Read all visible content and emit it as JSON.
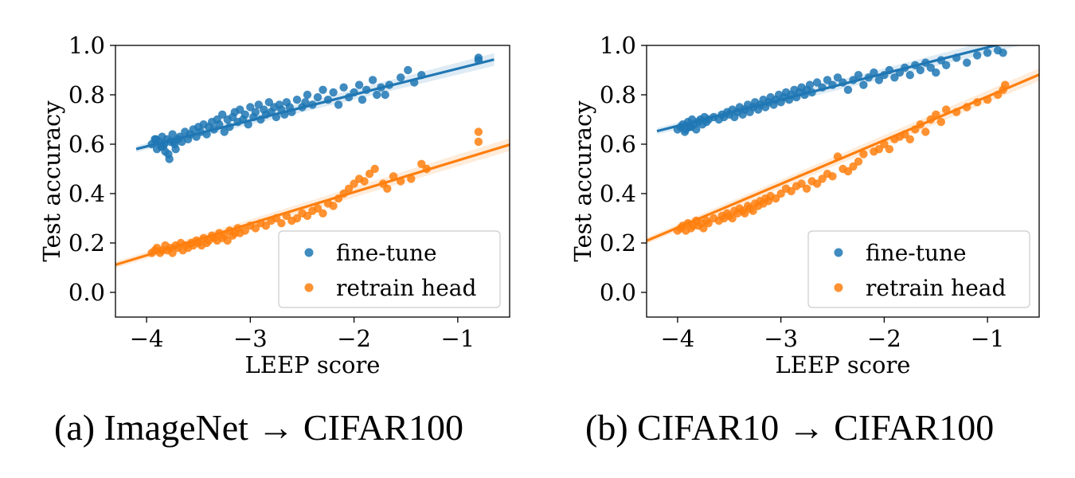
{
  "chart_data": [
    {
      "type": "scatter",
      "xlabel": "LEEP score",
      "ylabel": "Test accuracy",
      "xlim": [
        -4.3,
        -0.5
      ],
      "ylim": [
        -0.1,
        1.0
      ],
      "xticks": [
        -4,
        -3,
        -2,
        -1
      ],
      "xtick_labels": [
        "−4",
        "−3",
        "−2",
        "−1"
      ],
      "yticks": [
        0.0,
        0.2,
        0.4,
        0.6,
        0.8,
        1.0
      ],
      "ytick_labels": [
        "0.0",
        "0.2",
        "0.4",
        "0.6",
        "0.8",
        "1.0"
      ],
      "legend_position": "bottom-right",
      "grid": false,
      "caption": "(a) ImageNet → CIFAR100",
      "series": [
        {
          "name": "fine-tune",
          "color": "#1f77b4",
          "fit": {
            "slope": 0.105,
            "intercept": 1.011,
            "x_range": [
              -4.1,
              -0.65
            ]
          },
          "x": [
            -3.95,
            -3.92,
            -3.9,
            -3.88,
            -3.86,
            -3.85,
            -3.83,
            -3.82,
            -3.8,
            -3.78,
            -3.77,
            -3.75,
            -3.73,
            -3.72,
            -3.7,
            -3.68,
            -3.66,
            -3.63,
            -3.6,
            -3.58,
            -3.55,
            -3.52,
            -3.5,
            -3.48,
            -3.45,
            -3.42,
            -3.4,
            -3.37,
            -3.35,
            -3.32,
            -3.3,
            -3.27,
            -3.25,
            -3.22,
            -3.2,
            -3.17,
            -3.15,
            -3.12,
            -3.1,
            -3.07,
            -3.05,
            -3.02,
            -3.0,
            -2.97,
            -2.95,
            -2.92,
            -2.9,
            -2.87,
            -2.85,
            -2.82,
            -2.8,
            -2.77,
            -2.75,
            -2.72,
            -2.7,
            -2.67,
            -2.65,
            -2.62,
            -2.6,
            -2.55,
            -2.5,
            -2.47,
            -2.45,
            -2.4,
            -2.35,
            -2.3,
            -2.25,
            -2.2,
            -2.15,
            -2.1,
            -2.05,
            -2.0,
            -1.95,
            -1.92,
            -1.88,
            -1.82,
            -1.78,
            -1.74,
            -1.7,
            -1.66,
            -1.55,
            -1.48,
            -1.42,
            -1.35,
            -0.8,
            -0.8,
            -3.84,
            -3.79,
            -3.91,
            -3.74
          ],
          "y": [
            0.6,
            0.62,
            0.58,
            0.61,
            0.59,
            0.63,
            0.6,
            0.57,
            0.62,
            0.54,
            0.61,
            0.64,
            0.6,
            0.58,
            0.62,
            0.63,
            0.61,
            0.65,
            0.62,
            0.64,
            0.66,
            0.63,
            0.67,
            0.65,
            0.68,
            0.64,
            0.67,
            0.69,
            0.66,
            0.7,
            0.68,
            0.72,
            0.65,
            0.7,
            0.67,
            0.71,
            0.73,
            0.69,
            0.74,
            0.7,
            0.72,
            0.68,
            0.75,
            0.71,
            0.73,
            0.76,
            0.7,
            0.74,
            0.72,
            0.77,
            0.73,
            0.75,
            0.71,
            0.76,
            0.74,
            0.72,
            0.77,
            0.75,
            0.73,
            0.78,
            0.75,
            0.77,
            0.8,
            0.76,
            0.79,
            0.82,
            0.78,
            0.81,
            0.76,
            0.83,
            0.79,
            0.81,
            0.84,
            0.78,
            0.82,
            0.86,
            0.8,
            0.83,
            0.8,
            0.84,
            0.87,
            0.9,
            0.85,
            0.88,
            0.95,
            0.94,
            0.59,
            0.56,
            0.62,
            0.61
          ]
        },
        {
          "name": "retrain head",
          "color": "#ff7f0e",
          "fit": {
            "slope": 0.128,
            "intercept": 0.662,
            "x_range": [
              -4.3,
              -0.5
            ]
          },
          "x": [
            -3.95,
            -3.92,
            -3.9,
            -3.87,
            -3.85,
            -3.82,
            -3.8,
            -3.77,
            -3.75,
            -3.72,
            -3.7,
            -3.67,
            -3.65,
            -3.62,
            -3.6,
            -3.57,
            -3.55,
            -3.52,
            -3.5,
            -3.47,
            -3.45,
            -3.42,
            -3.4,
            -3.37,
            -3.35,
            -3.32,
            -3.3,
            -3.27,
            -3.25,
            -3.22,
            -3.2,
            -3.17,
            -3.15,
            -3.12,
            -3.1,
            -3.05,
            -3.0,
            -2.95,
            -2.9,
            -2.85,
            -2.8,
            -2.75,
            -2.7,
            -2.65,
            -2.6,
            -2.55,
            -2.5,
            -2.45,
            -2.4,
            -2.35,
            -2.3,
            -2.25,
            -2.2,
            -2.15,
            -2.1,
            -2.05,
            -2.0,
            -1.95,
            -1.9,
            -1.85,
            -1.8,
            -1.72,
            -1.68,
            -1.62,
            -1.55,
            -1.45,
            -1.35,
            -1.3,
            -0.8,
            -0.8
          ],
          "y": [
            0.16,
            0.17,
            0.18,
            0.16,
            0.17,
            0.19,
            0.17,
            0.18,
            0.16,
            0.19,
            0.18,
            0.2,
            0.17,
            0.19,
            0.18,
            0.2,
            0.19,
            0.21,
            0.2,
            0.19,
            0.22,
            0.2,
            0.21,
            0.23,
            0.22,
            0.21,
            0.24,
            0.22,
            0.23,
            0.21,
            0.25,
            0.23,
            0.24,
            0.26,
            0.24,
            0.25,
            0.27,
            0.26,
            0.28,
            0.27,
            0.29,
            0.3,
            0.28,
            0.31,
            0.29,
            0.3,
            0.32,
            0.31,
            0.33,
            0.34,
            0.32,
            0.36,
            0.35,
            0.38,
            0.4,
            0.42,
            0.44,
            0.46,
            0.45,
            0.48,
            0.5,
            0.44,
            0.42,
            0.47,
            0.45,
            0.46,
            0.52,
            0.5,
            0.65,
            0.61
          ]
        }
      ]
    },
    {
      "type": "scatter",
      "xlabel": "LEEP score",
      "ylabel": "Test accuracy",
      "xlim": [
        -4.3,
        -0.5
      ],
      "ylim": [
        -0.1,
        1.0
      ],
      "xticks": [
        -4,
        -3,
        -2,
        -1
      ],
      "xtick_labels": [
        "−4",
        "−3",
        "−2",
        "−1"
      ],
      "yticks": [
        0.0,
        0.2,
        0.4,
        0.6,
        0.8,
        1.0
      ],
      "ytick_labels": [
        "0.0",
        "0.2",
        "0.4",
        "0.6",
        "0.8",
        "1.0"
      ],
      "legend_position": "bottom-right",
      "grid": false,
      "caption": "(b) CIFAR10 → CIFAR100",
      "series": [
        {
          "name": "fine-tune",
          "color": "#1f77b4",
          "fit": {
            "slope": 0.106,
            "intercept": 1.098,
            "x_range": [
              -4.2,
              -0.7
            ]
          },
          "x": [
            -4.0,
            -3.97,
            -3.95,
            -3.92,
            -3.9,
            -3.88,
            -3.86,
            -3.84,
            -3.82,
            -3.8,
            -3.78,
            -3.76,
            -3.74,
            -3.72,
            -3.7,
            -3.65,
            -3.6,
            -3.57,
            -3.55,
            -3.52,
            -3.5,
            -3.47,
            -3.45,
            -3.42,
            -3.4,
            -3.37,
            -3.35,
            -3.32,
            -3.3,
            -3.27,
            -3.25,
            -3.22,
            -3.2,
            -3.17,
            -3.15,
            -3.12,
            -3.1,
            -3.07,
            -3.05,
            -3.02,
            -3.0,
            -2.97,
            -2.95,
            -2.92,
            -2.9,
            -2.87,
            -2.85,
            -2.82,
            -2.8,
            -2.77,
            -2.75,
            -2.72,
            -2.7,
            -2.65,
            -2.6,
            -2.55,
            -2.5,
            -2.45,
            -2.4,
            -2.35,
            -2.3,
            -2.25,
            -2.2,
            -2.15,
            -2.1,
            -2.05,
            -2.0,
            -1.95,
            -1.9,
            -1.85,
            -1.8,
            -1.75,
            -1.7,
            -1.65,
            -1.6,
            -1.55,
            -1.5,
            -1.45,
            -1.4,
            -1.3,
            -1.2,
            -1.1,
            -1.0,
            -0.9,
            -0.85,
            -3.93,
            -3.87
          ],
          "y": [
            0.66,
            0.67,
            0.68,
            0.66,
            0.69,
            0.67,
            0.7,
            0.68,
            0.66,
            0.69,
            0.7,
            0.68,
            0.71,
            0.69,
            0.7,
            0.71,
            0.7,
            0.72,
            0.71,
            0.73,
            0.72,
            0.74,
            0.71,
            0.73,
            0.75,
            0.72,
            0.74,
            0.76,
            0.73,
            0.75,
            0.77,
            0.74,
            0.76,
            0.78,
            0.75,
            0.77,
            0.79,
            0.76,
            0.78,
            0.8,
            0.77,
            0.79,
            0.81,
            0.78,
            0.8,
            0.82,
            0.79,
            0.81,
            0.83,
            0.8,
            0.82,
            0.84,
            0.81,
            0.85,
            0.83,
            0.86,
            0.84,
            0.87,
            0.85,
            0.82,
            0.86,
            0.88,
            0.84,
            0.87,
            0.89,
            0.86,
            0.88,
            0.9,
            0.87,
            0.89,
            0.91,
            0.88,
            0.92,
            0.9,
            0.93,
            0.91,
            0.89,
            0.94,
            0.92,
            0.95,
            0.93,
            0.96,
            0.97,
            0.98,
            0.97,
            0.65,
            0.67
          ]
        },
        {
          "name": "retrain head",
          "color": "#ff7f0e",
          "fit": {
            "slope": 0.177,
            "intercept": 0.97,
            "x_range": [
              -4.3,
              -0.5
            ]
          },
          "x": [
            -4.0,
            -3.97,
            -3.95,
            -3.92,
            -3.9,
            -3.87,
            -3.85,
            -3.82,
            -3.8,
            -3.77,
            -3.75,
            -3.72,
            -3.7,
            -3.65,
            -3.6,
            -3.57,
            -3.55,
            -3.52,
            -3.5,
            -3.47,
            -3.45,
            -3.42,
            -3.4,
            -3.37,
            -3.35,
            -3.32,
            -3.3,
            -3.27,
            -3.25,
            -3.22,
            -3.2,
            -3.17,
            -3.15,
            -3.12,
            -3.1,
            -3.05,
            -3.0,
            -2.95,
            -2.9,
            -2.85,
            -2.8,
            -2.75,
            -2.7,
            -2.65,
            -2.6,
            -2.55,
            -2.5,
            -2.45,
            -2.4,
            -2.35,
            -2.3,
            -2.25,
            -2.2,
            -2.1,
            -2.05,
            -2.0,
            -1.95,
            -1.9,
            -1.85,
            -1.8,
            -1.75,
            -1.7,
            -1.65,
            -1.6,
            -1.55,
            -1.5,
            -1.45,
            -1.4,
            -1.3,
            -1.2,
            -1.1,
            -1.0,
            -0.9,
            -0.85,
            -0.83
          ],
          "y": [
            0.25,
            0.26,
            0.27,
            0.25,
            0.28,
            0.26,
            0.27,
            0.29,
            0.27,
            0.28,
            0.26,
            0.29,
            0.28,
            0.3,
            0.29,
            0.31,
            0.3,
            0.32,
            0.31,
            0.3,
            0.33,
            0.32,
            0.34,
            0.33,
            0.32,
            0.35,
            0.34,
            0.33,
            0.36,
            0.35,
            0.37,
            0.36,
            0.38,
            0.37,
            0.39,
            0.38,
            0.4,
            0.42,
            0.41,
            0.43,
            0.44,
            0.42,
            0.45,
            0.44,
            0.46,
            0.48,
            0.47,
            0.55,
            0.5,
            0.49,
            0.51,
            0.53,
            0.56,
            0.57,
            0.58,
            0.6,
            0.58,
            0.62,
            0.63,
            0.64,
            0.62,
            0.66,
            0.68,
            0.65,
            0.7,
            0.72,
            0.69,
            0.74,
            0.73,
            0.75,
            0.77,
            0.78,
            0.8,
            0.82,
            0.84
          ]
        }
      ]
    }
  ]
}
